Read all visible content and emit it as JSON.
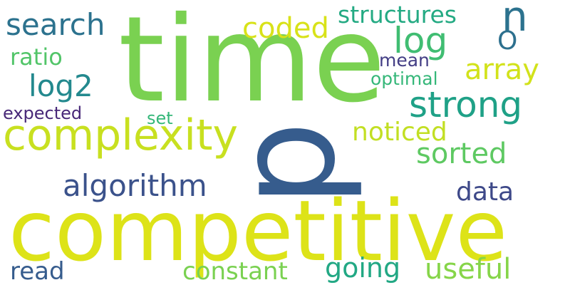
{
  "words": [
    {
      "text": "time",
      "color": "#7ad151"
    },
    {
      "text": "p",
      "color": "#365c8d"
    },
    {
      "text": "competitive",
      "color": "#dde318"
    },
    {
      "text": "complexity",
      "color": "#c8e020"
    },
    {
      "text": "strong",
      "color": "#1fa187"
    },
    {
      "text": "algorithm",
      "color": "#3b528b"
    },
    {
      "text": "array",
      "color": "#d2e21b"
    },
    {
      "text": "coded",
      "color": "#d8e219"
    },
    {
      "text": "log",
      "color": "#40bd72"
    },
    {
      "text": "search",
      "color": "#2c728e"
    },
    {
      "text": "structures",
      "color": "#24aa83"
    },
    {
      "text": "n",
      "color": "#2c728e"
    },
    {
      "text": "O",
      "color": "#2d708e"
    },
    {
      "text": "log2",
      "color": "#23898e"
    },
    {
      "text": "ratio",
      "color": "#52c569"
    },
    {
      "text": "mean",
      "color": "#433e85"
    },
    {
      "text": "optimal",
      "color": "#35b779"
    },
    {
      "text": "noticed",
      "color": "#c2df23"
    },
    {
      "text": "sorted",
      "color": "#5ec962"
    },
    {
      "text": "expected",
      "color": "#482878"
    },
    {
      "text": "set",
      "color": "#35b779"
    },
    {
      "text": "data",
      "color": "#3e4989"
    },
    {
      "text": "read",
      "color": "#365c8d"
    },
    {
      "text": "constant",
      "color": "#7ad151"
    },
    {
      "text": "going",
      "color": "#22a884"
    },
    {
      "text": "useful",
      "color": "#86d549"
    }
  ]
}
